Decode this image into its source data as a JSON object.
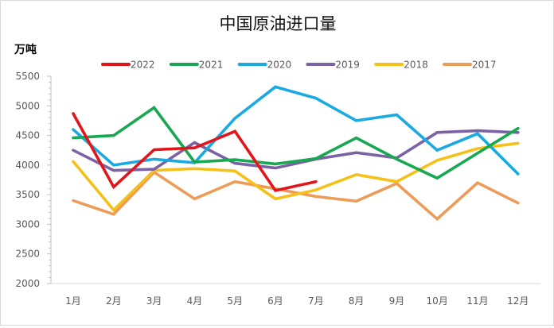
{
  "chart_data": {
    "type": "line",
    "title": "中国原油进口量",
    "ylabel": "万吨",
    "xlabel": "",
    "categories": [
      "1月",
      "2月",
      "3月",
      "4月",
      "5月",
      "6月",
      "7月",
      "8月",
      "9月",
      "10月",
      "11月",
      "12月"
    ],
    "ylim": [
      2000,
      5500
    ],
    "yticks": [
      2000,
      2500,
      3000,
      3500,
      4000,
      4500,
      5000,
      5500
    ],
    "grid": false,
    "legend_position": "top",
    "series": [
      {
        "name": "2022",
        "color": "#e2151b",
        "values": [
          4870,
          3630,
          4260,
          4290,
          4570,
          3570,
          3720,
          null,
          null,
          null,
          null,
          null
        ]
      },
      {
        "name": "2021",
        "color": "#18a852",
        "values": [
          4460,
          4500,
          4970,
          4050,
          4090,
          4020,
          4110,
          4460,
          4100,
          3780,
          4200,
          4620
        ]
      },
      {
        "name": "2020",
        "color": "#1aa9e0",
        "values": [
          4600,
          4000,
          4100,
          4040,
          4790,
          5320,
          5130,
          4750,
          4850,
          4250,
          4530,
          3850
        ]
      },
      {
        "name": "2019",
        "color": "#7a62a4",
        "values": [
          4250,
          3910,
          3930,
          4380,
          4030,
          3950,
          4100,
          4210,
          4120,
          4550,
          4580,
          4550
        ]
      },
      {
        "name": "2018",
        "color": "#f5c118",
        "values": [
          4060,
          3240,
          3910,
          3940,
          3900,
          3430,
          3580,
          3840,
          3720,
          4080,
          4280,
          4370
        ]
      },
      {
        "name": "2017",
        "color": "#ee9b58",
        "values": [
          3400,
          3170,
          3880,
          3430,
          3720,
          3600,
          3470,
          3390,
          3690,
          3090,
          3700,
          3360
        ]
      }
    ]
  }
}
